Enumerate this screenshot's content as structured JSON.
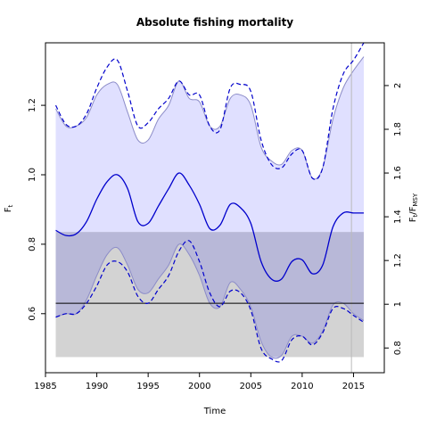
{
  "chart_data": {
    "type": "line",
    "title": "Absolute fishing mortality",
    "xlabel": "Time",
    "ylabel_left": "F",
    "ylabel_left_sub": "t",
    "ylabel_right": "F",
    "ylabel_right_sub": "t",
    "ylabel_right_denom": "F",
    "ylabel_right_denom_sub": "MSY",
    "xlim": [
      1985,
      2018
    ],
    "ylim": [
      0.43,
      1.38
    ],
    "ylim_right": [
      0.6869,
      2.1955
    ],
    "x_ticks": [
      1985,
      1990,
      1995,
      2000,
      2005,
      2010,
      2015
    ],
    "y_ticks": [
      0.6,
      0.8,
      1.0,
      1.2
    ],
    "y_tick_labels": [
      "0.6",
      "0.8",
      "1.0",
      "1.2"
    ],
    "right_ticks": [
      0.8,
      1.0,
      1.2,
      1.4,
      1.6,
      1.8,
      2.0
    ],
    "right_tick_labels": [
      "0.8",
      "1",
      "1.2",
      "1.4",
      "1.6",
      "1.8",
      "2"
    ],
    "fmsy": 0.63,
    "fmsy_band": [
      0.475,
      0.835
    ],
    "vline_x": 2014.8,
    "grid": false,
    "colors": {
      "estimate": "#0000cc",
      "ci_fill": "#e0e0ff",
      "ci_line": "#8c8cc8",
      "fmsy_band_fill": "#d3d3d3",
      "overlap_fill": "#b8b8d8",
      "fmsy_line": "#000000",
      "vline": "#bbbbbb"
    },
    "series": [
      {
        "role": "estimate",
        "x": [
          1986,
          1987,
          1988,
          1989,
          1990,
          1991,
          1992,
          1993,
          1994,
          1995,
          1996,
          1997,
          1998,
          1999,
          2000,
          2001,
          2002,
          2003,
          2004,
          2005,
          2006,
          2007,
          2008,
          2009,
          2010,
          2011,
          2012,
          2013,
          2014,
          2015,
          2016
        ],
        "y": [
          0.84,
          0.825,
          0.83,
          0.865,
          0.93,
          0.98,
          1.0,
          0.96,
          0.865,
          0.86,
          0.91,
          0.96,
          1.005,
          0.97,
          0.915,
          0.845,
          0.855,
          0.915,
          0.905,
          0.86,
          0.75,
          0.7,
          0.7,
          0.75,
          0.755,
          0.715,
          0.74,
          0.85,
          0.89,
          0.89,
          0.89
        ]
      },
      {
        "role": "ci_upper",
        "x": [
          1986,
          1987,
          1988,
          1989,
          1990,
          1991,
          1992,
          1993,
          1994,
          1995,
          1996,
          1997,
          1998,
          1999,
          2000,
          2001,
          2002,
          2003,
          2004,
          2005,
          2006,
          2007,
          2008,
          2009,
          2010,
          2011,
          2012,
          2013,
          2014,
          2015,
          2016
        ],
        "y": [
          1.19,
          1.14,
          1.14,
          1.165,
          1.23,
          1.26,
          1.26,
          1.18,
          1.1,
          1.1,
          1.16,
          1.2,
          1.27,
          1.22,
          1.21,
          1.14,
          1.14,
          1.22,
          1.23,
          1.2,
          1.08,
          1.04,
          1.03,
          1.07,
          1.07,
          0.99,
          1.02,
          1.16,
          1.25,
          1.3,
          1.34
        ]
      },
      {
        "role": "ci_lower",
        "x": [
          1986,
          1987,
          1988,
          1989,
          1990,
          1991,
          1992,
          1993,
          1994,
          1995,
          1996,
          1997,
          1998,
          1999,
          2000,
          2001,
          2002,
          2003,
          2004,
          2005,
          2006,
          2007,
          2008,
          2009,
          2010,
          2011,
          2012,
          2013,
          2014,
          2015,
          2016
        ],
        "y": [
          0.59,
          0.6,
          0.6,
          0.64,
          0.71,
          0.77,
          0.79,
          0.74,
          0.67,
          0.66,
          0.7,
          0.74,
          0.8,
          0.77,
          0.71,
          0.63,
          0.62,
          0.69,
          0.67,
          0.62,
          0.52,
          0.475,
          0.48,
          0.535,
          0.535,
          0.515,
          0.55,
          0.625,
          0.63,
          0.6,
          0.58
        ]
      },
      {
        "role": "dashed_upper",
        "x": [
          1986,
          1987,
          1988,
          1989,
          1990,
          1991,
          1992,
          1993,
          1994,
          1995,
          1996,
          1997,
          1998,
          1999,
          2000,
          2001,
          2002,
          2003,
          2004,
          2005,
          2006,
          2007,
          2008,
          2009,
          2010,
          2011,
          2012,
          2013,
          2014,
          2015,
          2016
        ],
        "y": [
          1.2,
          1.145,
          1.14,
          1.175,
          1.25,
          1.31,
          1.33,
          1.24,
          1.14,
          1.15,
          1.19,
          1.22,
          1.27,
          1.23,
          1.23,
          1.14,
          1.13,
          1.25,
          1.26,
          1.24,
          1.1,
          1.03,
          1.02,
          1.06,
          1.07,
          0.99,
          1.02,
          1.19,
          1.29,
          1.33,
          1.38
        ]
      },
      {
        "role": "dashed_lower",
        "x": [
          1986,
          1987,
          1988,
          1989,
          1990,
          1991,
          1992,
          1993,
          1994,
          1995,
          1996,
          1997,
          1998,
          1999,
          2000,
          2001,
          2002,
          2003,
          2004,
          2005,
          2006,
          2007,
          2008,
          2009,
          2010,
          2011,
          2012,
          2013,
          2014,
          2015,
          2016
        ],
        "y": [
          0.59,
          0.6,
          0.6,
          0.63,
          0.68,
          0.74,
          0.75,
          0.72,
          0.65,
          0.63,
          0.67,
          0.71,
          0.78,
          0.81,
          0.75,
          0.66,
          0.62,
          0.665,
          0.66,
          0.61,
          0.5,
          0.47,
          0.465,
          0.525,
          0.535,
          0.51,
          0.545,
          0.615,
          0.615,
          0.595,
          0.575
        ]
      }
    ]
  }
}
